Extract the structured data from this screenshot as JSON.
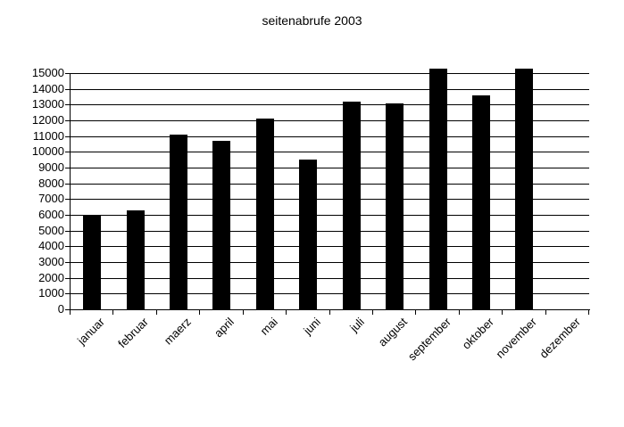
{
  "title": "seitenabrufe 2003",
  "chart_data": {
    "type": "bar",
    "title": "seitenabrufe 2003",
    "categories": [
      "januar",
      "februar",
      "maerz",
      "april",
      "mai",
      "juni",
      "juli",
      "august",
      "september",
      "oktober",
      "november",
      "dezember"
    ],
    "values": [
      6000,
      6300,
      11100,
      10700,
      12100,
      9500,
      13200,
      13100,
      15300,
      13600,
      15300,
      0
    ],
    "xlabel": "",
    "ylabel": "",
    "ylim": [
      0,
      15000
    ],
    "ytick_step": 1000,
    "grid": true,
    "legend": "none",
    "bar_color": "#000000",
    "axis_color": "#000000",
    "background_color": "#ffffff"
  }
}
